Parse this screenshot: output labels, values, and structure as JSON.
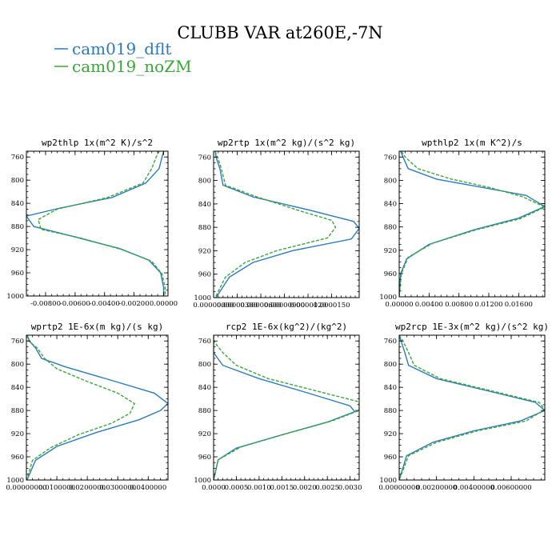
{
  "title": "CLUBB VAR at260E,-7N",
  "colors": {
    "dflt": "#2b7bba",
    "noZM": "#3aa63a"
  },
  "legend": [
    {
      "label": "cam019_dflt",
      "color": "#2b7bba",
      "dash": "solid"
    },
    {
      "label": "cam019_noZM",
      "color": "#3aa63a",
      "dash": "dashed"
    }
  ],
  "chart_data": [
    {
      "type": "line",
      "title": "wp2thlp  1x(m^2 K)/s^2",
      "y_reversed": true,
      "ylim": [
        1000,
        750
      ],
      "y_ticks": [
        "760",
        "800",
        "840",
        "880",
        "920",
        "960",
        "1000"
      ],
      "xlim": [
        -0.0093,
        0.0003
      ],
      "x_ticks": [
        -0.008,
        -0.006,
        -0.004,
        -0.002,
        0.0
      ],
      "x_tick_labels": [
        "-0.00800",
        "-0.00600",
        "-0.00400",
        "-0.00200",
        "0.00000"
      ],
      "series": [
        {
          "name": "cam019_dflt",
          "line": "solid",
          "points": [
            [
              -0.0,
              750
            ],
            [
              -0.0001,
              760
            ],
            [
              -0.0003,
              780
            ],
            [
              -0.0012,
              805
            ],
            [
              -0.0035,
              830
            ],
            [
              -0.007,
              848
            ],
            [
              -0.0093,
              862
            ],
            [
              -0.0088,
              880
            ],
            [
              -0.006,
              898
            ],
            [
              -0.003,
              918
            ],
            [
              -0.001,
              938
            ],
            [
              -0.0002,
              960
            ],
            [
              0.0,
              985
            ],
            [
              0.0,
              1000
            ]
          ]
        },
        {
          "name": "cam019_noZM",
          "line": "dashed",
          "points": [
            [
              -0.0003,
              750
            ],
            [
              -0.0005,
              760
            ],
            [
              -0.0008,
              780
            ],
            [
              -0.0014,
              805
            ],
            [
              -0.0038,
              830
            ],
            [
              -0.0072,
              850
            ],
            [
              -0.0085,
              868
            ],
            [
              -0.0083,
              885
            ],
            [
              -0.0056,
              900
            ],
            [
              -0.0028,
              920
            ],
            [
              -0.0008,
              940
            ],
            [
              -0.0001,
              962
            ],
            [
              0.0001,
              985
            ],
            [
              0.0001,
              1000
            ]
          ]
        }
      ]
    },
    {
      "type": "line",
      "title": "wp2rtp  1x(m^2 kg)/(s^2 kg)",
      "y_reversed": true,
      "ylim": [
        1000,
        750
      ],
      "y_ticks": [
        "760",
        "800",
        "840",
        "880",
        "920",
        "960",
        "1000"
      ],
      "xlim": [
        0.0,
        1.85e-05
      ],
      "x_ticks": [
        0.0,
        3e-06,
        6e-06,
        9e-06,
        1.2e-05,
        1.5e-05
      ],
      "x_tick_labels": [
        "0.00000000",
        "0.00000300",
        "0.00000600",
        "0.00000900",
        "0.0000120",
        "0.0000150"
      ],
      "series": [
        {
          "name": "cam019_dflt",
          "line": "solid",
          "points": [
            [
              2e-07,
              750
            ],
            [
              3e-07,
              760
            ],
            [
              8e-07,
              780
            ],
            [
              1.2e-06,
              808
            ],
            [
              5e-06,
              828
            ],
            [
              1.2e-05,
              850
            ],
            [
              1.78e-05,
              870
            ],
            [
              1.85e-05,
              882
            ],
            [
              1.75e-05,
              900
            ],
            [
              1e-05,
              920
            ],
            [
              5e-06,
              940
            ],
            [
              2e-06,
              965
            ],
            [
              3e-07,
              1000
            ]
          ]
        },
        {
          "name": "cam019_noZM",
          "line": "dashed",
          "points": [
            [
              2e-07,
              750
            ],
            [
              5e-07,
              760
            ],
            [
              1e-06,
              780
            ],
            [
              1.5e-06,
              808
            ],
            [
              5.5e-06,
              828
            ],
            [
              1.1e-05,
              852
            ],
            [
              1.5e-05,
              868
            ],
            [
              1.55e-05,
              880
            ],
            [
              1.45e-05,
              898
            ],
            [
              8e-06,
              920
            ],
            [
              4e-06,
              940
            ],
            [
              1.5e-06,
              965
            ],
            [
              2e-07,
              1000
            ]
          ]
        }
      ]
    },
    {
      "type": "line",
      "title": "wpthlp2  1x(m K^2)/s",
      "y_reversed": true,
      "ylim": [
        1000,
        750
      ],
      "y_ticks": [
        "760",
        "800",
        "840",
        "880",
        "920",
        "960",
        "1000"
      ],
      "xlim": [
        0.0,
        0.0195
      ],
      "x_ticks": [
        0.0,
        0.004,
        0.008,
        0.012,
        0.016
      ],
      "x_tick_labels": [
        "0.00000",
        "0.00400",
        "0.00800",
        "0.01200",
        "0.01600"
      ],
      "series": [
        {
          "name": "cam019_dflt",
          "line": "solid",
          "points": [
            [
              0.0002,
              750
            ],
            [
              0.0005,
              760
            ],
            [
              0.0012,
              780
            ],
            [
              0.005,
              798
            ],
            [
              0.011,
              812
            ],
            [
              0.017,
              826
            ],
            [
              0.0195,
              845
            ],
            [
              0.016,
              865
            ],
            [
              0.01,
              885
            ],
            [
              0.004,
              910
            ],
            [
              0.001,
              935
            ],
            [
              0.0002,
              960
            ],
            [
              0.0,
              1000
            ]
          ]
        },
        {
          "name": "cam019_noZM",
          "line": "dashed",
          "points": [
            [
              0.0003,
              750
            ],
            [
              0.0008,
              760
            ],
            [
              0.0025,
              780
            ],
            [
              0.007,
              798
            ],
            [
              0.012,
              812
            ],
            [
              0.0165,
              828
            ],
            [
              0.0195,
              846
            ],
            [
              0.0162,
              866
            ],
            [
              0.0103,
              885
            ],
            [
              0.0045,
              908
            ],
            [
              0.0012,
              932
            ],
            [
              0.0003,
              960
            ],
            [
              0.0,
              1000
            ]
          ]
        }
      ]
    },
    {
      "type": "line",
      "title": "wprtp2  1E-6x(m kg)/(s kg)",
      "y_reversed": true,
      "ylim": [
        1000,
        750
      ],
      "y_ticks": [
        "760",
        "800",
        "840",
        "880",
        "920",
        "960",
        "1000"
      ],
      "xlim": [
        0.0,
        0.0465
      ],
      "x_ticks": [
        0.0,
        0.01,
        0.02,
        0.03,
        0.04
      ],
      "x_tick_labels": [
        "0.00000000",
        "0.0100000",
        "0.0200000",
        "0.0300000",
        "0.0400000"
      ],
      "series": [
        {
          "name": "cam019_dflt",
          "line": "solid",
          "points": [
            [
              0.0003,
              750
            ],
            [
              0.001,
              760
            ],
            [
              0.003,
              772
            ],
            [
              0.005,
              790
            ],
            [
              0.013,
              805
            ],
            [
              0.028,
              828
            ],
            [
              0.042,
              850
            ],
            [
              0.0465,
              868
            ],
            [
              0.044,
              880
            ],
            [
              0.037,
              896
            ],
            [
              0.023,
              918
            ],
            [
              0.01,
              942
            ],
            [
              0.003,
              966
            ],
            [
              0.0002,
              1000
            ]
          ]
        },
        {
          "name": "cam019_noZM",
          "line": "dashed",
          "points": [
            [
              0.0001,
              750
            ],
            [
              0.0008,
              760
            ],
            [
              0.0035,
              772
            ],
            [
              0.006,
              790
            ],
            [
              0.01,
              808
            ],
            [
              0.02,
              830
            ],
            [
              0.03,
              850
            ],
            [
              0.0355,
              868
            ],
            [
              0.034,
              885
            ],
            [
              0.028,
              902
            ],
            [
              0.017,
              922
            ],
            [
              0.008,
              944
            ],
            [
              0.002,
              966
            ],
            [
              0.0001,
              1000
            ]
          ]
        }
      ]
    },
    {
      "type": "line",
      "title": "rcp2  1E-6x(kg^2)/(kg^2)",
      "y_reversed": true,
      "ylim": [
        1000,
        750
      ],
      "y_ticks": [
        "760",
        "800",
        "840",
        "880",
        "920",
        "960",
        "1000"
      ],
      "xlim": [
        0.0,
        0.0032
      ],
      "x_ticks": [
        0.0,
        0.0005,
        0.001,
        0.0015,
        0.002,
        0.0025,
        0.003
      ],
      "x_tick_labels": [
        "0.0000",
        "0.0005",
        "0.0010",
        "0.0015",
        "0.0020",
        "0.0025",
        "0.0030"
      ],
      "series": [
        {
          "name": "cam019_dflt",
          "line": "solid",
          "points": [
            [
              0.0,
              750
            ],
            [
              0.0,
              760
            ],
            [
              0.0,
              780
            ],
            [
              0.0002,
              802
            ],
            [
              0.001,
              825
            ],
            [
              0.002,
              848
            ],
            [
              0.003,
              872
            ],
            [
              0.0031,
              882
            ],
            [
              0.0025,
              900
            ],
            [
              0.0015,
              922
            ],
            [
              0.0005,
              945
            ],
            [
              0.0001,
              965
            ],
            [
              0.0,
              1000
            ]
          ]
        },
        {
          "name": "cam019_noZM",
          "line": "dashed",
          "points": [
            [
              0.0,
              750
            ],
            [
              0.0,
              760
            ],
            [
              0.0002,
              780
            ],
            [
              0.0005,
              802
            ],
            [
              0.0012,
              825
            ],
            [
              0.0022,
              845
            ],
            [
              0.0032,
              865
            ],
            [
              0.0032,
              880
            ],
            [
              0.0026,
              898
            ],
            [
              0.0016,
              920
            ],
            [
              0.0006,
              943
            ],
            [
              0.0001,
              965
            ],
            [
              0.0,
              1000
            ]
          ]
        }
      ]
    },
    {
      "type": "line",
      "title": "wp2rcp  1E-3x(m^2 kg)/(s^2 kg)",
      "y_reversed": true,
      "ylim": [
        1000,
        750
      ],
      "y_ticks": [
        "760",
        "800",
        "840",
        "880",
        "920",
        "960",
        "1000"
      ],
      "xlim": [
        0.0,
        0.0078
      ],
      "x_ticks": [
        0.0,
        0.002,
        0.004,
        0.006
      ],
      "x_tick_labels": [
        "0.00000000",
        "0.00200000",
        "0.00400000",
        "0.00600000"
      ],
      "series": [
        {
          "name": "cam019_dflt",
          "line": "solid",
          "points": [
            [
              0.0,
              750
            ],
            [
              0.0001,
              760
            ],
            [
              0.0003,
              780
            ],
            [
              0.0005,
              802
            ],
            [
              0.002,
              825
            ],
            [
              0.005,
              848
            ],
            [
              0.0073,
              866
            ],
            [
              0.0078,
              880
            ],
            [
              0.0065,
              898
            ],
            [
              0.004,
              915
            ],
            [
              0.0018,
              935
            ],
            [
              0.0004,
              958
            ],
            [
              0.0,
              1000
            ]
          ]
        },
        {
          "name": "cam019_noZM",
          "line": "dashed",
          "points": [
            [
              0.0,
              750
            ],
            [
              0.0002,
              760
            ],
            [
              0.0005,
              780
            ],
            [
              0.0008,
              802
            ],
            [
              0.0022,
              825
            ],
            [
              0.0052,
              848
            ],
            [
              0.0075,
              866
            ],
            [
              0.0078,
              878
            ],
            [
              0.0068,
              898
            ],
            [
              0.0042,
              915
            ],
            [
              0.002,
              935
            ],
            [
              0.0005,
              958
            ],
            [
              0.0,
              1000
            ]
          ]
        }
      ]
    }
  ]
}
